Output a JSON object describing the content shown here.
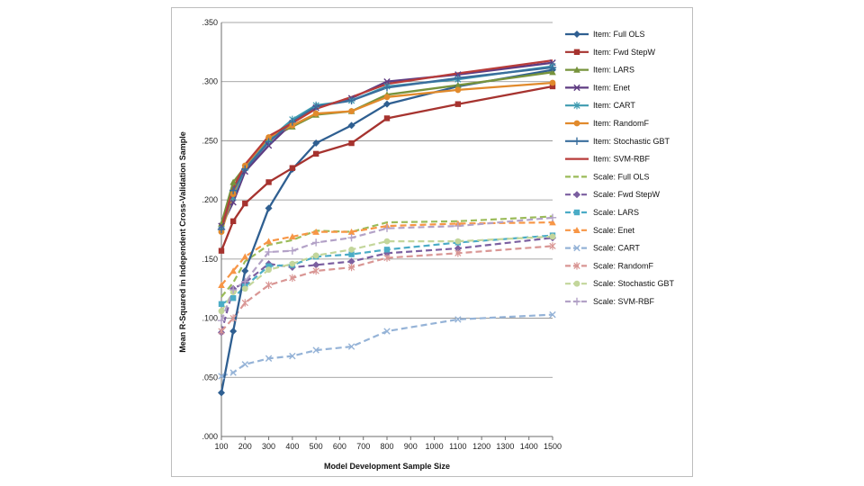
{
  "chart_data": {
    "type": "line",
    "title": "",
    "xlabel": "Model Development Sample Size",
    "ylabel": "Mean R-Squared in Independent Cross-Validation Sample",
    "x": [
      100,
      150,
      200,
      300,
      400,
      500,
      650,
      800,
      1100,
      1500
    ],
    "x_ticks": [
      100,
      200,
      300,
      400,
      500,
      600,
      700,
      800,
      900,
      1000,
      1100,
      1200,
      1300,
      1400,
      1500
    ],
    "y_ticks": [
      ".000",
      ".050",
      ".100",
      ".150",
      ".200",
      ".250",
      ".300",
      ".350"
    ],
    "xlim": [
      100,
      1500
    ],
    "ylim": [
      0,
      0.35
    ],
    "legend_position": "right",
    "series": [
      {
        "name": "Item: Full OLS",
        "color": "#2f5f91",
        "dash": false,
        "marker": "diamond",
        "values": [
          0.037,
          0.089,
          0.14,
          0.193,
          0.226,
          0.248,
          0.263,
          0.281,
          0.296,
          0.31
        ]
      },
      {
        "name": "Item: Fwd StepW",
        "color": "#a6332f",
        "dash": false,
        "marker": "square",
        "values": [
          0.157,
          0.182,
          0.197,
          0.215,
          0.227,
          0.239,
          0.248,
          0.269,
          0.281,
          0.296
        ]
      },
      {
        "name": "Item: LARS",
        "color": "#77933c",
        "dash": false,
        "marker": "triangle",
        "values": [
          0.18,
          0.215,
          0.228,
          0.252,
          0.262,
          0.272,
          0.275,
          0.289,
          0.297,
          0.308
        ]
      },
      {
        "name": "Item: Enet",
        "color": "#5f3c82",
        "dash": false,
        "marker": "x",
        "values": [
          0.178,
          0.198,
          0.224,
          0.246,
          0.265,
          0.278,
          0.286,
          0.3,
          0.306,
          0.316
        ]
      },
      {
        "name": "Item: CART",
        "color": "#3e9bb0",
        "dash": false,
        "marker": "star",
        "values": [
          0.175,
          0.202,
          0.227,
          0.251,
          0.268,
          0.28,
          0.284,
          0.296,
          0.302,
          0.313
        ]
      },
      {
        "name": "Item: RandomF",
        "color": "#e18a2c",
        "dash": false,
        "marker": "circle",
        "values": [
          0.173,
          0.205,
          0.229,
          0.253,
          0.263,
          0.273,
          0.275,
          0.287,
          0.293,
          0.299
        ]
      },
      {
        "name": "Item: Stochastic GBT",
        "color": "#3a6e9d",
        "dash": false,
        "marker": "plus",
        "values": [
          0.175,
          0.208,
          0.226,
          0.249,
          0.266,
          0.279,
          0.284,
          0.295,
          0.303,
          0.312
        ]
      },
      {
        "name": "Item: SVM-RBF",
        "color": "#b83c3a",
        "dash": false,
        "marker": "none",
        "values": [
          0.176,
          0.21,
          0.23,
          0.254,
          0.265,
          0.277,
          0.287,
          0.298,
          0.307,
          0.318
        ]
      },
      {
        "name": "Scale: Full OLS",
        "color": "#9bbb59",
        "dash": true,
        "marker": "none",
        "values": [
          0.118,
          0.13,
          0.148,
          0.162,
          0.166,
          0.174,
          0.173,
          0.181,
          0.182,
          0.186
        ]
      },
      {
        "name": "Scale: Fwd StepW",
        "color": "#7b5fa0",
        "dash": true,
        "marker": "diamond",
        "values": [
          0.088,
          0.125,
          0.13,
          0.146,
          0.143,
          0.145,
          0.148,
          0.155,
          0.159,
          0.168
        ]
      },
      {
        "name": "Scale: LARS",
        "color": "#4bacc6",
        "dash": true,
        "marker": "square",
        "values": [
          0.112,
          0.117,
          0.127,
          0.144,
          0.145,
          0.152,
          0.154,
          0.158,
          0.164,
          0.17
        ]
      },
      {
        "name": "Scale: Enet",
        "color": "#f79646",
        "dash": true,
        "marker": "triangle",
        "values": [
          0.128,
          0.14,
          0.152,
          0.165,
          0.169,
          0.173,
          0.173,
          0.178,
          0.18,
          0.181
        ]
      },
      {
        "name": "Scale: CART",
        "color": "#95b3d7",
        "dash": true,
        "marker": "x",
        "values": [
          0.051,
          0.054,
          0.061,
          0.066,
          0.068,
          0.073,
          0.076,
          0.089,
          0.099,
          0.103
        ]
      },
      {
        "name": "Scale: RandomF",
        "color": "#d99694",
        "dash": true,
        "marker": "star",
        "values": [
          0.089,
          0.1,
          0.113,
          0.128,
          0.134,
          0.14,
          0.143,
          0.151,
          0.155,
          0.161
        ]
      },
      {
        "name": "Scale: Stochastic GBT",
        "color": "#c3d69b",
        "dash": true,
        "marker": "circle",
        "values": [
          0.106,
          0.122,
          0.125,
          0.141,
          0.146,
          0.153,
          0.158,
          0.165,
          0.165,
          0.169
        ]
      },
      {
        "name": "Scale: SVM-RBF",
        "color": "#b3a2c7",
        "dash": true,
        "marker": "plus",
        "values": [
          0.098,
          0.124,
          0.131,
          0.156,
          0.157,
          0.164,
          0.168,
          0.176,
          0.178,
          0.185
        ]
      }
    ]
  }
}
